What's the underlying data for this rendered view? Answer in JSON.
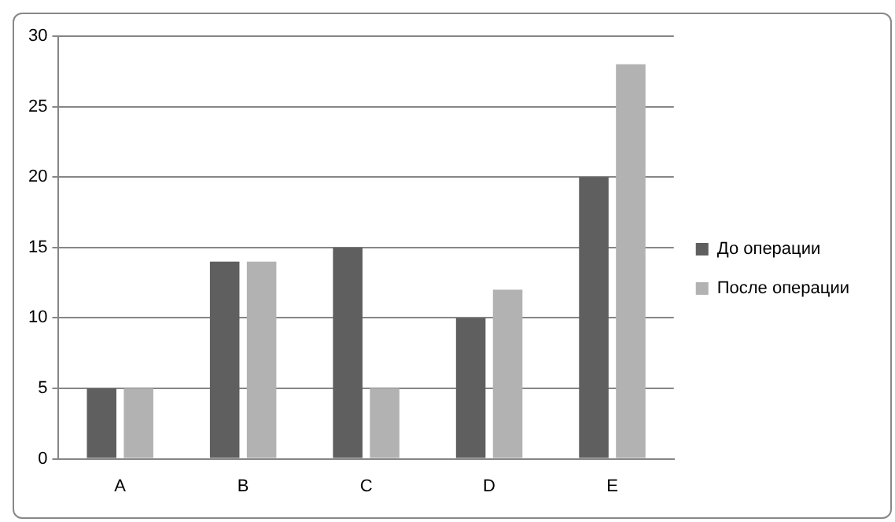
{
  "chart_data": {
    "type": "bar",
    "categories": [
      "A",
      "B",
      "C",
      "D",
      "E"
    ],
    "series": [
      {
        "name": "До операции",
        "color": "#5f5f5f",
        "values": [
          5,
          14,
          15,
          10,
          20
        ]
      },
      {
        "name": "После операции",
        "color": "#b2b2b2",
        "values": [
          5,
          14,
          5,
          12,
          28
        ]
      }
    ],
    "ylim": [
      0,
      30
    ],
    "yticks": [
      0,
      5,
      10,
      15,
      20,
      25,
      30
    ],
    "grid": "y",
    "legend": "right"
  }
}
